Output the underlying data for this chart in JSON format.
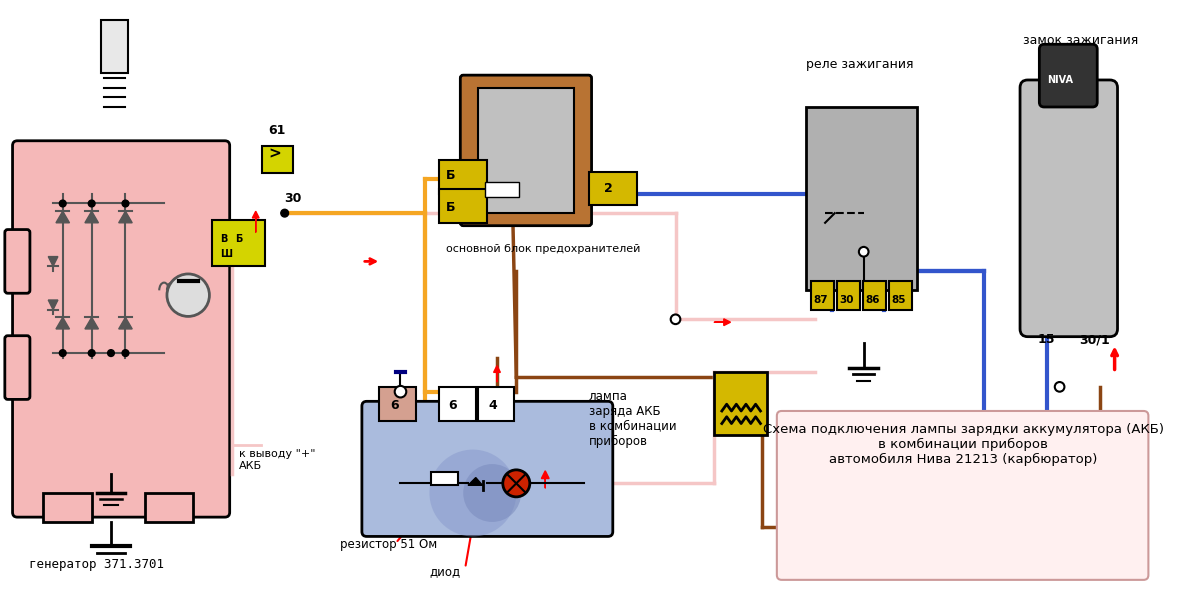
{
  "title": "Схема подключения лампы зарядки аккумулятора (АКБ)\nв комбинации приборов\nавтомобиля Нива 21213 (карбюратор)",
  "generator_label": "генератор 371.3701",
  "generator_bg": "#f5b8b8",
  "relay_label": "реле зажигания",
  "lock_label": "замок зажигания",
  "fuse_block_label": "основной блок предохранителей",
  "akb_label": "к выводу \"+\"\nАКБ",
  "lamp_label": "лампа\nзаряда АКБ\nв комбинации\nприборов",
  "resistor_label": "резистор 51 Ом",
  "diod_label": "диод",
  "wire_orange": "#f5a623",
  "wire_pink": "#f5c6c6",
  "wire_blue": "#3355cc",
  "wire_brown": "#8B4513",
  "wire_dark": "#333333",
  "relay_bg": "#c0c0c0",
  "fuse_bg": "#d4b800",
  "box_bg": "#ffe8e8",
  "instrument_bg": "#aabbdd",
  "niva_label": "NIVA",
  "label_61": "61",
  "label_30": "30",
  "label_B": "Б",
  "label_Sh": "Ш",
  "label_V": "В",
  "relay_pins": [
    "87",
    "30",
    "86",
    "85"
  ],
  "label_2": "2",
  "label_6a": "6",
  "label_6b": "6",
  "label_4": "4",
  "label_15": "15",
  "label_30_1": "30/1",
  "bg_color": "#ffffff"
}
